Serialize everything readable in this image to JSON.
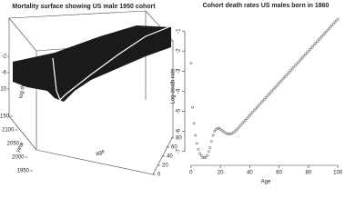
{
  "chart_data": [
    {
      "type": "surface",
      "title": "Mortality surface showing US male 1950 cohort",
      "zlabel": "log death rate",
      "ylabel": "year",
      "xlabel": "age",
      "zticks": [
        -2,
        -6,
        -10
      ],
      "yticks": [
        2150,
        2100,
        2050,
        2000,
        1950
      ],
      "xticks": [
        0,
        20,
        40,
        60,
        80
      ]
    },
    {
      "type": "scatter",
      "title": "Cohort death rates US males born in 1860",
      "xlabel": "Age",
      "ylabel": "Log death rate",
      "color": "#777777",
      "xlim": [
        -3,
        103
      ],
      "ylim": [
        -7.6,
        0
      ],
      "xticks": [
        0,
        20,
        40,
        60,
        80,
        100
      ],
      "yticks": [
        -7,
        -6,
        -5,
        -4,
        -3,
        -2,
        -1
      ],
      "x": [
        0,
        1,
        2,
        3,
        4,
        5,
        6,
        7,
        8,
        9,
        10,
        11,
        12,
        13,
        14,
        15,
        16,
        17,
        18,
        19,
        20,
        21,
        22,
        23,
        24,
        25,
        26,
        27,
        28,
        29,
        30,
        31,
        32,
        33,
        34,
        35,
        36,
        37,
        38,
        39,
        40,
        41,
        42,
        43,
        44,
        45,
        46,
        47,
        48,
        49,
        50,
        51,
        52,
        53,
        54,
        55,
        56,
        57,
        58,
        59,
        60,
        61,
        62,
        63,
        64,
        65,
        66,
        67,
        68,
        69,
        70,
        71,
        72,
        73,
        74,
        75,
        76,
        77,
        78,
        79,
        80,
        81,
        82,
        83,
        84,
        85,
        86,
        87,
        88,
        89,
        90,
        91,
        92,
        93,
        94,
        95,
        96,
        97,
        98,
        99,
        100
      ],
      "values": [
        -2.6,
        -4.8,
        -5.6,
        -6.2,
        -6.6,
        -6.9,
        -7.1,
        -7.2,
        -7.3,
        -7.3,
        -7.3,
        -7.2,
        -7.0,
        -6.8,
        -6.5,
        -6.2,
        -6.0,
        -5.9,
        -5.85,
        -5.85,
        -5.9,
        -5.95,
        -6.0,
        -6.05,
        -6.1,
        -6.12,
        -6.12,
        -6.12,
        -6.1,
        -6.05,
        -6.0,
        -5.92,
        -5.84,
        -5.76,
        -5.68,
        -5.6,
        -5.52,
        -5.44,
        -5.36,
        -5.28,
        -5.2,
        -5.12,
        -5.04,
        -4.96,
        -4.88,
        -4.8,
        -4.72,
        -4.64,
        -4.56,
        -4.48,
        -4.4,
        -4.32,
        -4.24,
        -4.16,
        -4.08,
        -4.0,
        -3.92,
        -3.84,
        -3.76,
        -3.68,
        -3.6,
        -3.52,
        -3.44,
        -3.36,
        -3.28,
        -3.2,
        -3.12,
        -3.04,
        -2.96,
        -2.88,
        -2.8,
        -2.72,
        -2.64,
        -2.56,
        -2.48,
        -2.4,
        -2.32,
        -2.24,
        -2.16,
        -2.08,
        -2.0,
        -1.92,
        -1.84,
        -1.76,
        -1.68,
        -1.6,
        -1.52,
        -1.44,
        -1.36,
        -1.28,
        -1.2,
        -1.12,
        -1.04,
        -0.96,
        -0.88,
        -0.8,
        -0.72,
        -0.64,
        -0.56,
        -0.48,
        -0.4
      ]
    }
  ]
}
